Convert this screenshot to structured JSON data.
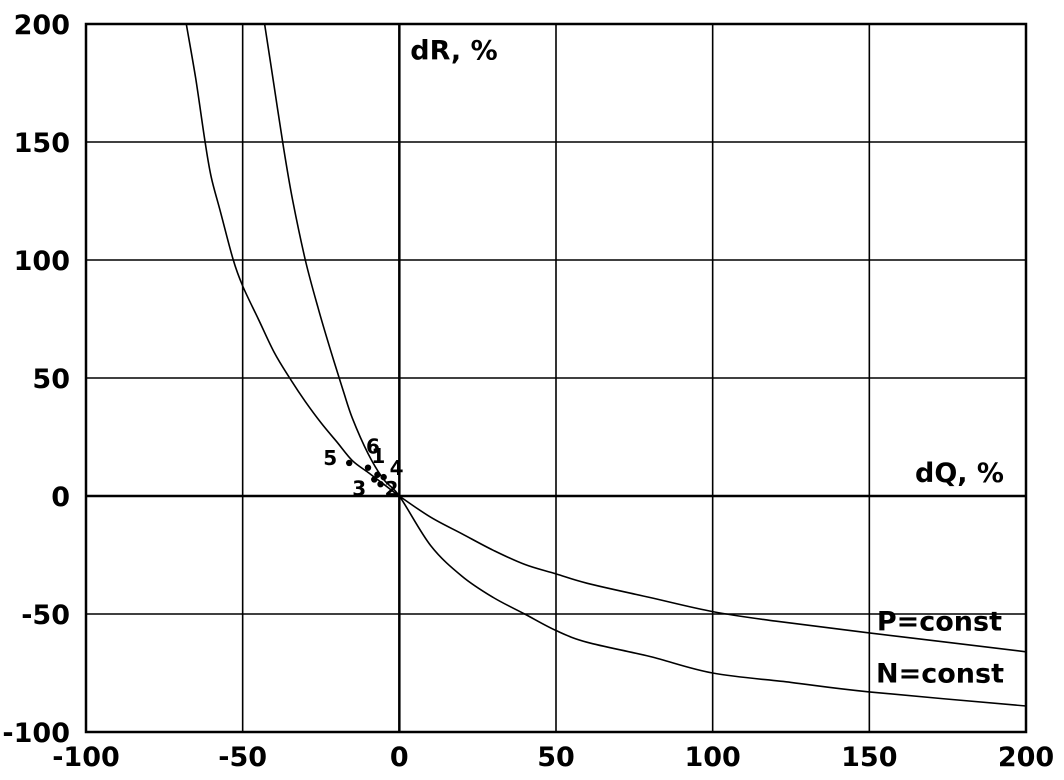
{
  "chart_data": {
    "type": "line",
    "xlabel": "dQ, %",
    "ylabel": "dR, %",
    "xlim": [
      -100,
      200
    ],
    "ylim": [
      -100,
      200
    ],
    "x_ticks": [
      -100,
      -50,
      0,
      50,
      100,
      150,
      200
    ],
    "y_ticks": [
      -100,
      -50,
      0,
      50,
      100,
      150,
      200
    ],
    "x_tick_labels": [
      "-100",
      "-50",
      "0",
      "50",
      "100",
      "150",
      "200"
    ],
    "y_tick_labels": [
      "-100",
      "-50",
      "0",
      "50",
      "100",
      "150",
      "200"
    ],
    "grid": true,
    "series": [
      {
        "name": "P=const",
        "points": [
          [
            -68,
            200
          ],
          [
            -65,
            177
          ],
          [
            -62,
            150
          ],
          [
            -60,
            135
          ],
          [
            -57,
            120
          ],
          [
            -53,
            100
          ],
          [
            -50,
            89
          ],
          [
            -45,
            75
          ],
          [
            -40,
            61
          ],
          [
            -35,
            50
          ],
          [
            -30,
            40
          ],
          [
            -25,
            31
          ],
          [
            -20,
            23
          ],
          [
            -15,
            15
          ],
          [
            -10,
            10
          ],
          [
            -5,
            5
          ],
          [
            0,
            0
          ],
          [
            10,
            -9
          ],
          [
            20,
            -16
          ],
          [
            30,
            -23
          ],
          [
            40,
            -29
          ],
          [
            50,
            -33
          ],
          [
            60,
            -37
          ],
          [
            80,
            -43
          ],
          [
            100,
            -49
          ],
          [
            120,
            -53
          ],
          [
            150,
            -58
          ],
          [
            200,
            -66
          ]
        ]
      },
      {
        "name": "N=const",
        "points": [
          [
            -43,
            200
          ],
          [
            -40,
            174
          ],
          [
            -37,
            148
          ],
          [
            -34,
            125
          ],
          [
            -30,
            100
          ],
          [
            -26,
            80
          ],
          [
            -22,
            62
          ],
          [
            -18,
            45
          ],
          [
            -15,
            33
          ],
          [
            -10,
            18
          ],
          [
            -5,
            7
          ],
          [
            0,
            0
          ],
          [
            10,
            -21
          ],
          [
            20,
            -34
          ],
          [
            30,
            -43
          ],
          [
            40,
            -50
          ],
          [
            50,
            -57
          ],
          [
            60,
            -62
          ],
          [
            80,
            -68
          ],
          [
            100,
            -75
          ],
          [
            125,
            -79
          ],
          [
            150,
            -83
          ],
          [
            200,
            -89
          ]
        ]
      }
    ],
    "points": [
      {
        "label": "1",
        "x": -7,
        "y": 9
      },
      {
        "label": "2",
        "x": -6,
        "y": 5
      },
      {
        "label": "3",
        "x": -8,
        "y": 7
      },
      {
        "label": "4",
        "x": -5,
        "y": 8
      },
      {
        "label": "5",
        "x": -16,
        "y": 14
      },
      {
        "label": "6",
        "x": -10,
        "y": 12
      }
    ],
    "annotations": [
      "P=const",
      "N=const"
    ]
  }
}
